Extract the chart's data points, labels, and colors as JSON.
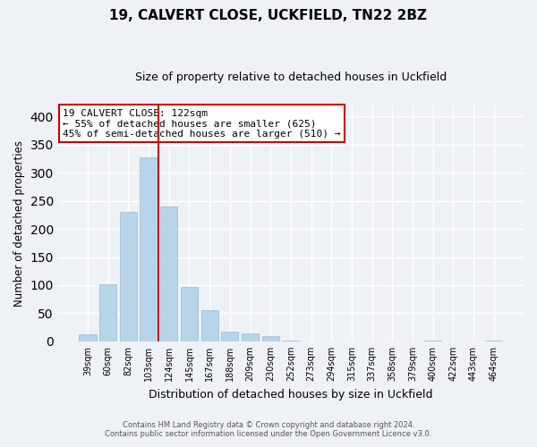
{
  "title": "19, CALVERT CLOSE, UCKFIELD, TN22 2BZ",
  "subtitle": "Size of property relative to detached houses in Uckfield",
  "xlabel": "Distribution of detached houses by size in Uckfield",
  "ylabel": "Number of detached properties",
  "bar_color": "#b8d4e8",
  "bar_edge_color": "#9ab8d0",
  "background_color": "#eef2f7",
  "grid_color": "#ffffff",
  "categories": [
    "39sqm",
    "60sqm",
    "82sqm",
    "103sqm",
    "124sqm",
    "145sqm",
    "167sqm",
    "188sqm",
    "209sqm",
    "230sqm",
    "252sqm",
    "273sqm",
    "294sqm",
    "315sqm",
    "337sqm",
    "358sqm",
    "379sqm",
    "400sqm",
    "422sqm",
    "443sqm",
    "464sqm"
  ],
  "values": [
    13,
    101,
    230,
    327,
    240,
    96,
    55,
    17,
    14,
    9,
    1,
    0,
    0,
    0,
    0,
    0,
    0,
    2,
    0,
    0,
    2
  ],
  "ylim": [
    0,
    420
  ],
  "yticks": [
    0,
    50,
    100,
    150,
    200,
    250,
    300,
    350,
    400
  ],
  "vline_color": "#cc0000",
  "annotation_title": "19 CALVERT CLOSE: 122sqm",
  "annotation_line1": "← 55% of detached houses are smaller (625)",
  "annotation_line2": "45% of semi-detached houses are larger (510) →",
  "annotation_box_color": "#ffffff",
  "annotation_box_edge": "#cc0000",
  "footer1": "Contains HM Land Registry data © Crown copyright and database right 2024.",
  "footer2": "Contains public sector information licensed under the Open Government Licence v3.0."
}
